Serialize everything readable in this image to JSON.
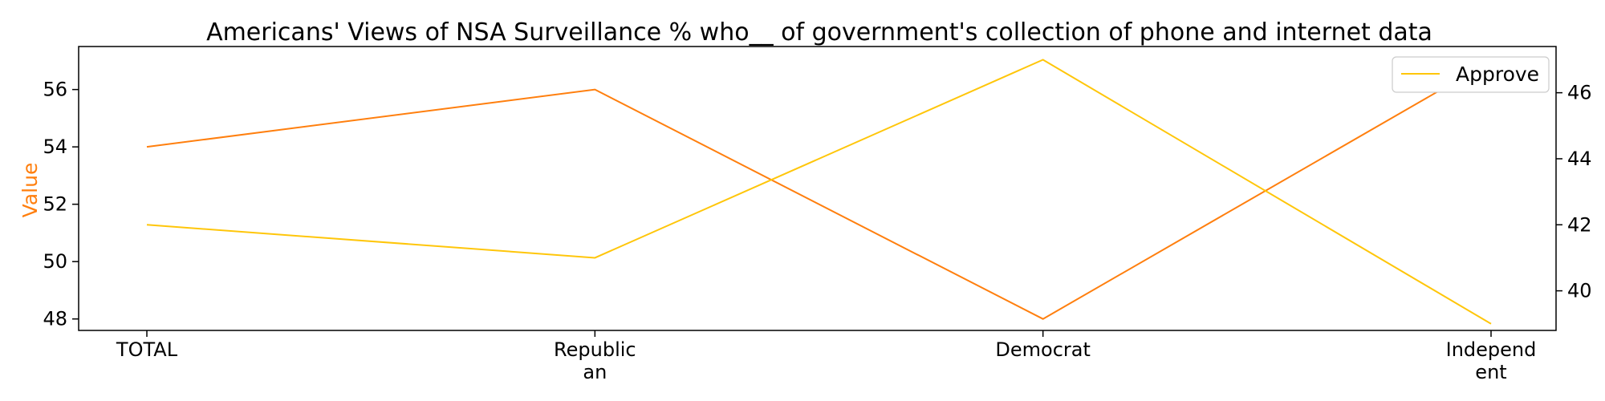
{
  "chart_data": {
    "type": "line",
    "title": "Americans' Views of NSA Surveillance % who__ of government's collection of phone and internet data",
    "xlabel": "",
    "ylabel": "Value",
    "categories": [
      "TOTAL",
      "Republic\nan",
      "Democrat",
      "Independ\nent"
    ],
    "left_axis": {
      "ylim": [
        47.6,
        57.5
      ],
      "ticks": [
        48,
        50,
        52,
        54,
        56
      ],
      "label_color": "#ff7f0e"
    },
    "right_axis": {
      "ylim": [
        38.8,
        47.4
      ],
      "ticks": [
        40,
        42,
        44,
        46
      ]
    },
    "series": [
      {
        "values": [
          54,
          56,
          48,
          57
        ],
        "axis": "left",
        "color": "#ff7f0e"
      },
      {
        "name": "Approve",
        "values": [
          42,
          41,
          47,
          39
        ],
        "axis": "right",
        "color": "#ffc60a"
      }
    ],
    "legend": {
      "position": "top-right",
      "entries": [
        "Approve"
      ]
    },
    "grid": false
  }
}
